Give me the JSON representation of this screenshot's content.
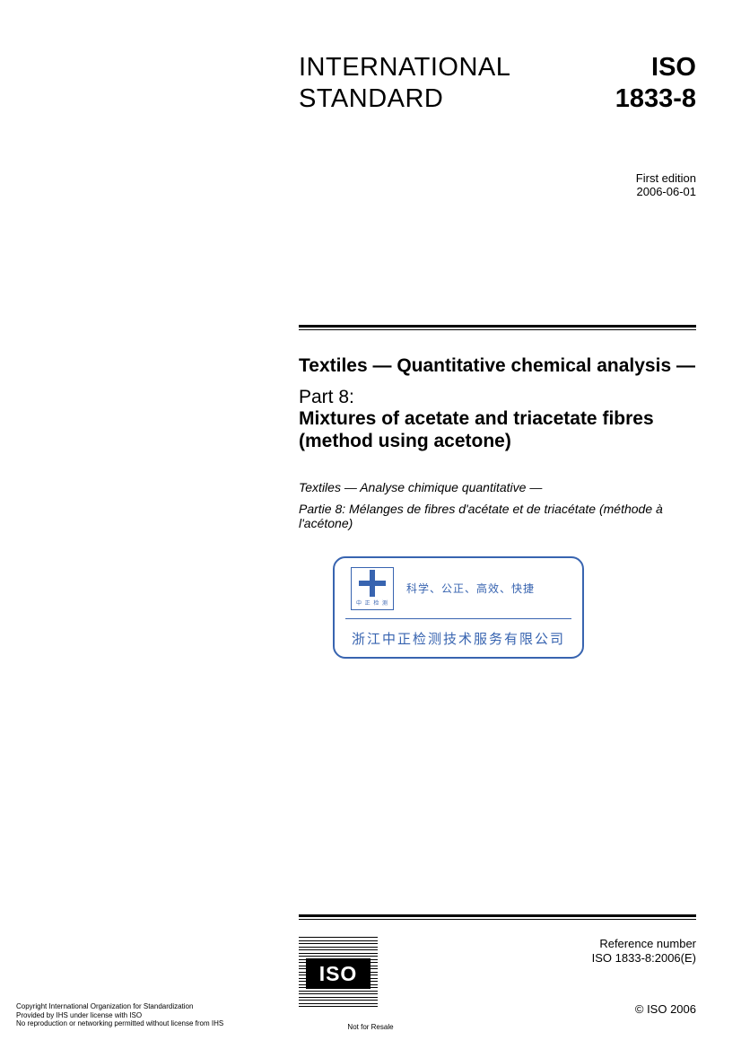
{
  "header": {
    "left_line1": "INTERNATIONAL",
    "left_line2": "STANDARD",
    "right_line1": "ISO",
    "right_line2": "1833-8"
  },
  "edition": {
    "label": "First edition",
    "date": "2006-06-01"
  },
  "title": {
    "en_main": "Textiles — Quantitative chemical analysis —",
    "part_label": "Part 8:",
    "part_title": "Mixtures of acetate and triacetate fibres (method using acetone)",
    "fr_main": "Textiles — Analyse chimique quantitative —",
    "fr_part": "Partie 8: Mélanges de fibres d'acétate et de triacétate (méthode à l'acétone)"
  },
  "stamp": {
    "motto": "科学、公正、高效、快捷",
    "company": "浙江中正检测技术服务有限公司",
    "logo_sub": "中 正 检 测"
  },
  "footer": {
    "ref_label": "Reference number",
    "ref_number": "ISO 1833-8:2006(E)",
    "copyright": "© ISO 2006",
    "iso_text": "ISO"
  },
  "bottom": {
    "line1": "Copyright International Organization for Standardization",
    "line2": "Provided by IHS under license with ISO",
    "line3": "No reproduction or networking permitted without license from IHS",
    "not_for_resale": "Not for Resale"
  },
  "colors": {
    "stamp_blue": "#3864b0",
    "text": "#000000",
    "background": "#ffffff"
  }
}
